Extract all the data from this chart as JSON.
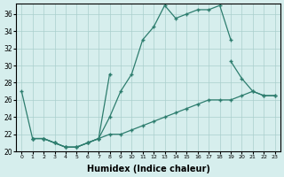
{
  "line1_x": [
    0,
    1,
    2,
    3,
    4,
    5,
    6,
    7,
    8,
    9,
    10,
    11,
    12,
    13,
    14,
    15,
    16,
    17,
    18,
    19
  ],
  "line1_y": [
    27,
    21.5,
    21.5,
    21,
    20.5,
    20.5,
    21,
    21.5,
    24,
    27,
    29,
    33,
    34.5,
    37,
    35.5,
    36,
    36.5,
    36.5,
    37,
    33
  ],
  "line2_x": [
    1,
    2,
    3,
    4,
    5,
    6,
    7,
    8,
    19,
    20,
    21,
    22,
    23
  ],
  "line2_y": [
    21.5,
    21.5,
    21,
    20.5,
    20.5,
    21,
    21.5,
    29,
    30.5,
    28.5,
    27,
    26.5,
    26.5
  ],
  "line3_x": [
    1,
    2,
    3,
    4,
    5,
    6,
    7,
    8,
    9,
    10,
    11,
    12,
    13,
    14,
    15,
    16,
    17,
    18,
    19,
    20,
    21,
    22,
    23
  ],
  "line3_y": [
    21.5,
    21.5,
    21,
    20.5,
    20.5,
    21,
    21.5,
    22,
    22,
    22.5,
    23,
    23.5,
    24,
    24.5,
    25,
    25.5,
    26,
    26,
    26,
    26.5,
    27,
    26.5,
    26.5
  ],
  "color": "#2d7d6e",
  "bg_color": "#d6eeed",
  "grid_color": "#aacfcc",
  "xlabel": "Humidex (Indice chaleur)",
  "xlabel_fontsize": 7,
  "ylim": [
    20,
    37
  ],
  "xlim": [
    -0.5,
    23.5
  ],
  "yticks": [
    20,
    22,
    24,
    26,
    28,
    30,
    32,
    34,
    36
  ],
  "xticks": [
    0,
    1,
    2,
    3,
    4,
    5,
    6,
    7,
    8,
    9,
    10,
    11,
    12,
    13,
    14,
    15,
    16,
    17,
    18,
    19,
    20,
    21,
    22,
    23
  ],
  "marker": "+",
  "markersize": 3,
  "linewidth": 0.9
}
